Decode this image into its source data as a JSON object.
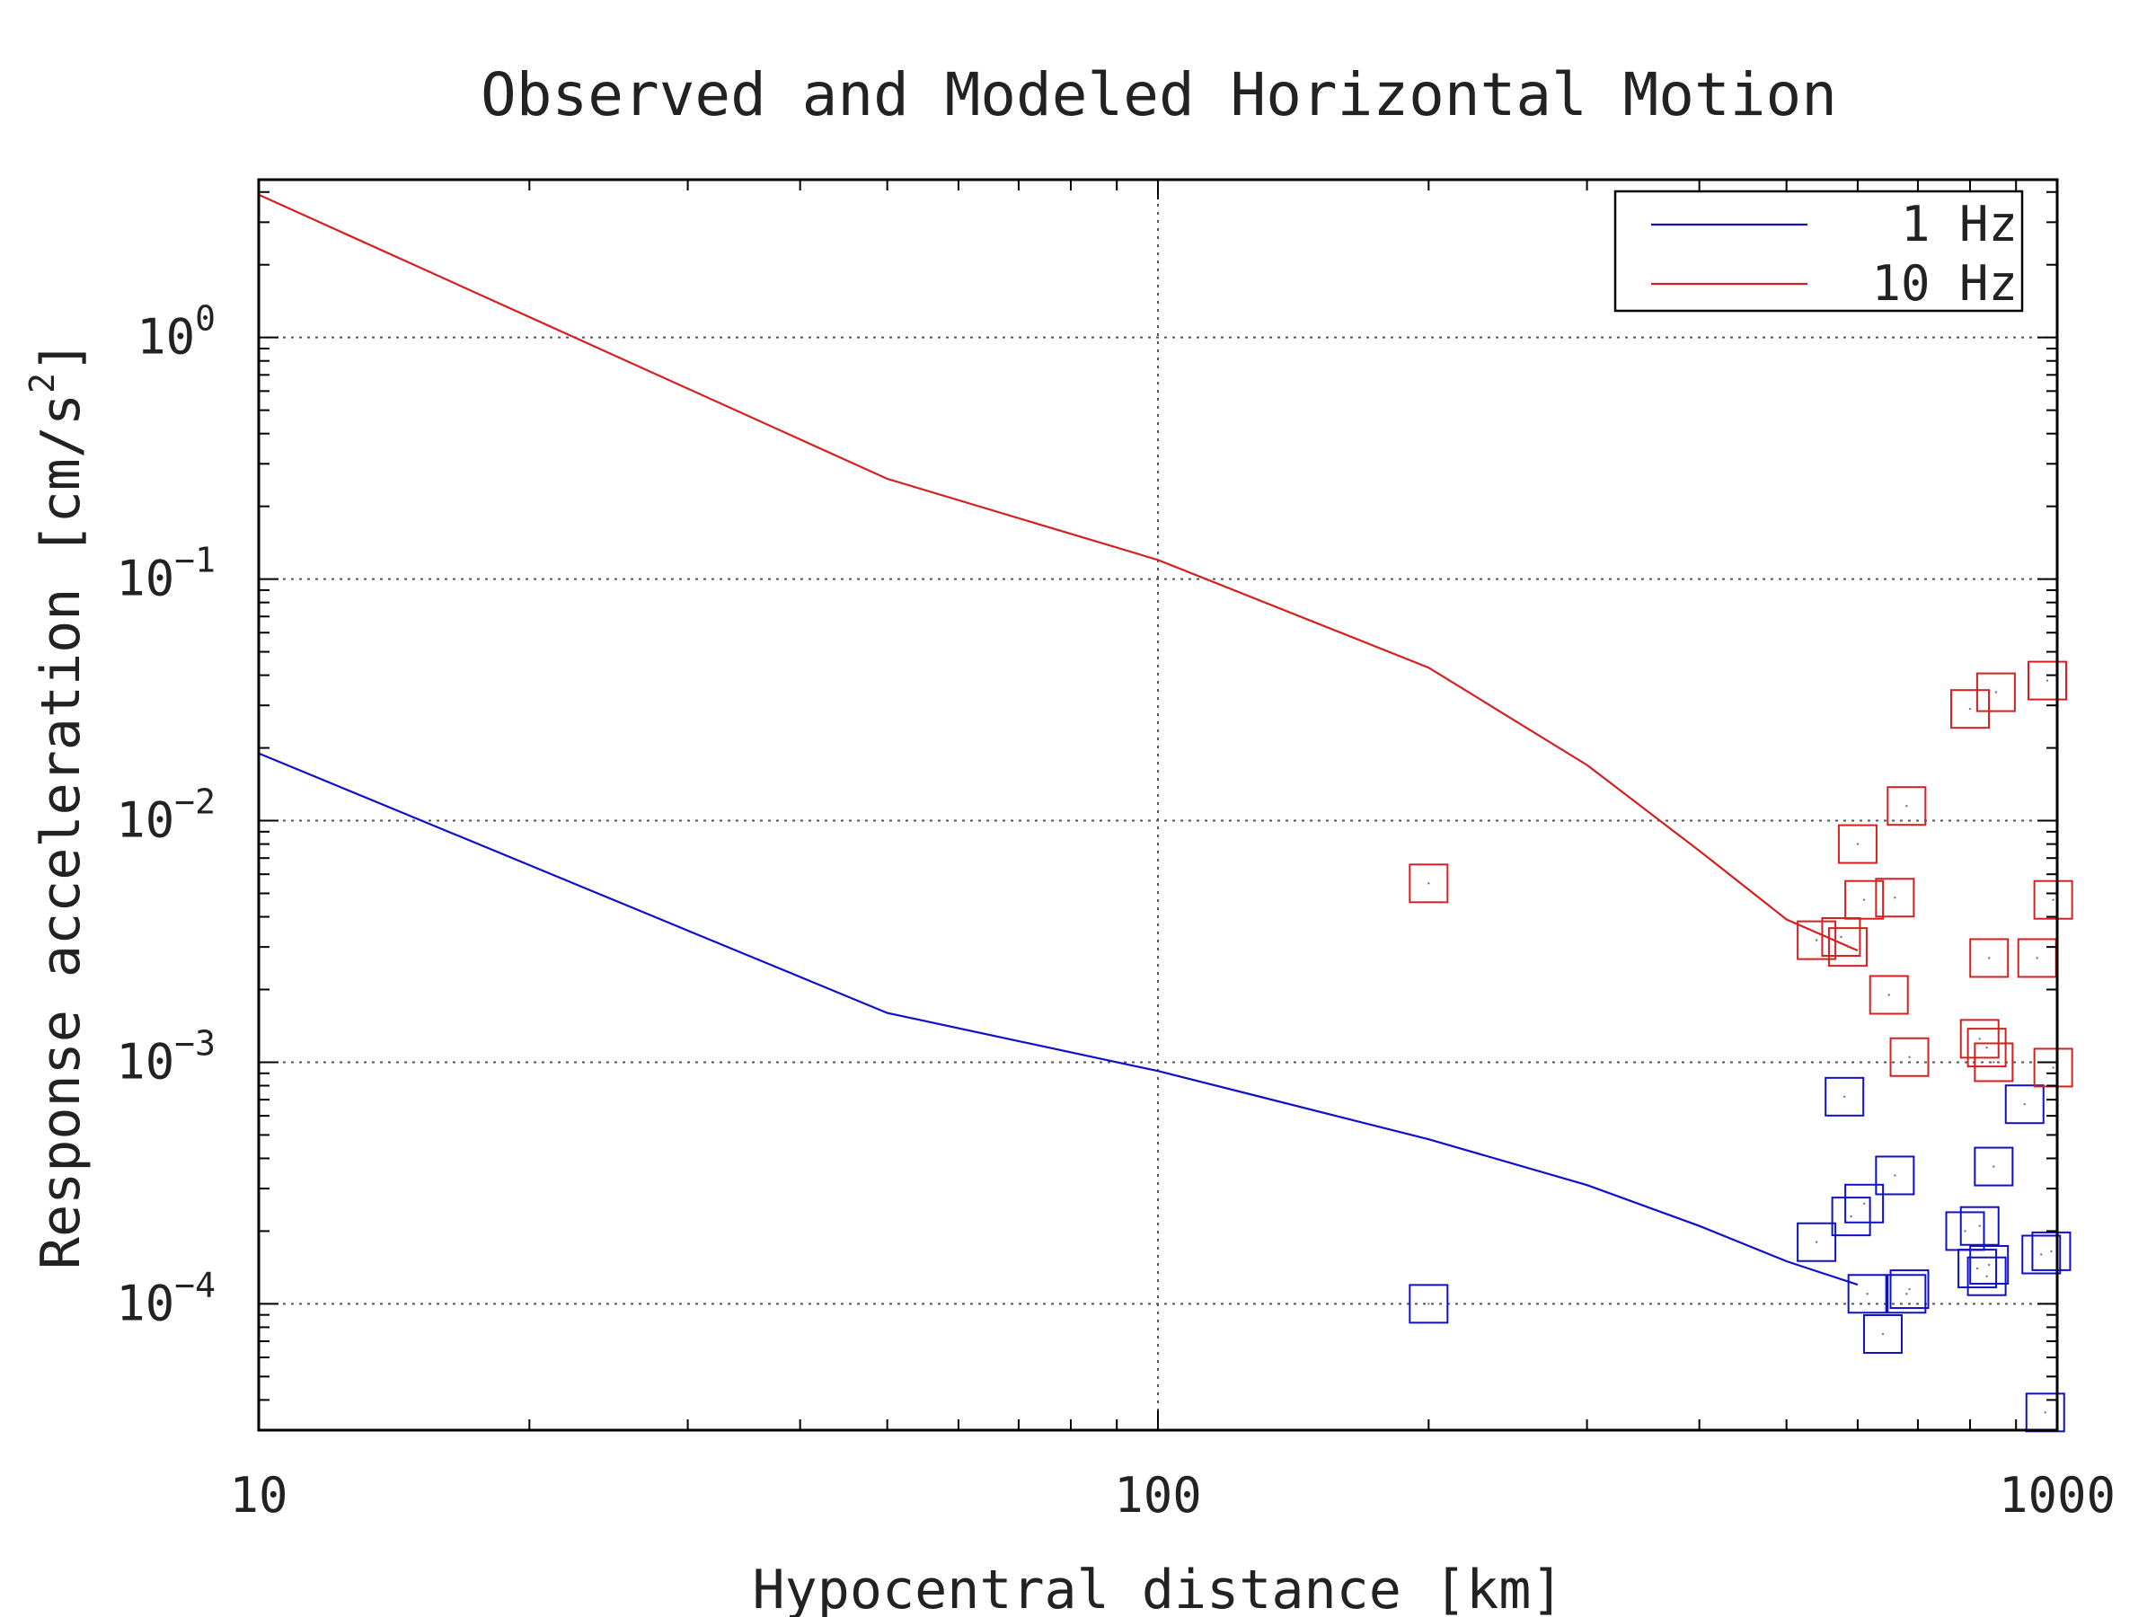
{
  "chart_data": {
    "type": "scatter",
    "title": "Observed and Modeled Horizontal Motion",
    "xlabel": "Hypocentral distance [km]",
    "ylabel": "Response acceleration [cm/s2]",
    "ylabel_parts": {
      "main": "Response acceleration [cm/s",
      "sup": "2",
      "close": "]"
    },
    "x_scale": "log",
    "y_scale": "log",
    "xlim": [
      10,
      1000
    ],
    "ylim": [
      3e-05,
      4.5
    ],
    "x_ticks": [
      {
        "value": 10,
        "label": "10"
      },
      {
        "value": 100,
        "label": "100"
      },
      {
        "value": 1000,
        "label": "1000"
      }
    ],
    "y_ticks": [
      {
        "value": 1,
        "base": "10",
        "exp": "0"
      },
      {
        "value": 0.1,
        "base": "10",
        "exp": "−1"
      },
      {
        "value": 0.01,
        "base": "10",
        "exp": "−2"
      },
      {
        "value": 0.001,
        "base": "10",
        "exp": "−3"
      },
      {
        "value": 0.0001,
        "base": "10",
        "exp": "−4"
      }
    ],
    "grid": true,
    "legend_position": "top-right",
    "series": [
      {
        "name": "1 Hz",
        "color": "#1010c8",
        "line": {
          "x": [
            10,
            50,
            100,
            200,
            300,
            400,
            500,
            600
          ],
          "y": [
            0.019,
            0.0016,
            0.00092,
            0.00048,
            0.00031,
            0.00021,
            0.00015,
            0.00012
          ]
        },
        "points": {
          "x": [
            200,
            540,
            580,
            590,
            610,
            615,
            640,
            660,
            680,
            685,
            790,
            815,
            820,
            835,
            840,
            850,
            920,
            960,
            970,
            985
          ],
          "y": [
            0.0001,
            0.00018,
            0.00072,
            0.00023,
            0.00026,
            0.00011,
            7.5e-05,
            0.00034,
            0.00011,
            0.000115,
            0.0002,
            0.00014,
            0.00021,
            0.00013,
            0.000145,
            0.00037,
            0.00067,
            0.00016,
            3.55e-05,
            0.000165
          ]
        }
      },
      {
        "name": "10 Hz",
        "color": "#d42020",
        "line": {
          "x": [
            10,
            50,
            100,
            200,
            300,
            400,
            500,
            600
          ],
          "y": [
            3.9,
            0.26,
            0.12,
            0.043,
            0.017,
            0.0075,
            0.0039,
            0.0029
          ]
        },
        "points": {
          "x": [
            200,
            540,
            575,
            585,
            600,
            610,
            650,
            660,
            680,
            685,
            800,
            820,
            835,
            840,
            850,
            855,
            950,
            975,
            990,
            990
          ],
          "y": [
            0.0055,
            0.0032,
            0.0033,
            0.003,
            0.008,
            0.0047,
            0.0019,
            0.0048,
            0.0115,
            0.00105,
            0.029,
            0.00125,
            0.00115,
            0.0027,
            0.001,
            0.034,
            0.0027,
            0.038,
            0.00095,
            0.0047
          ]
        }
      }
    ]
  }
}
